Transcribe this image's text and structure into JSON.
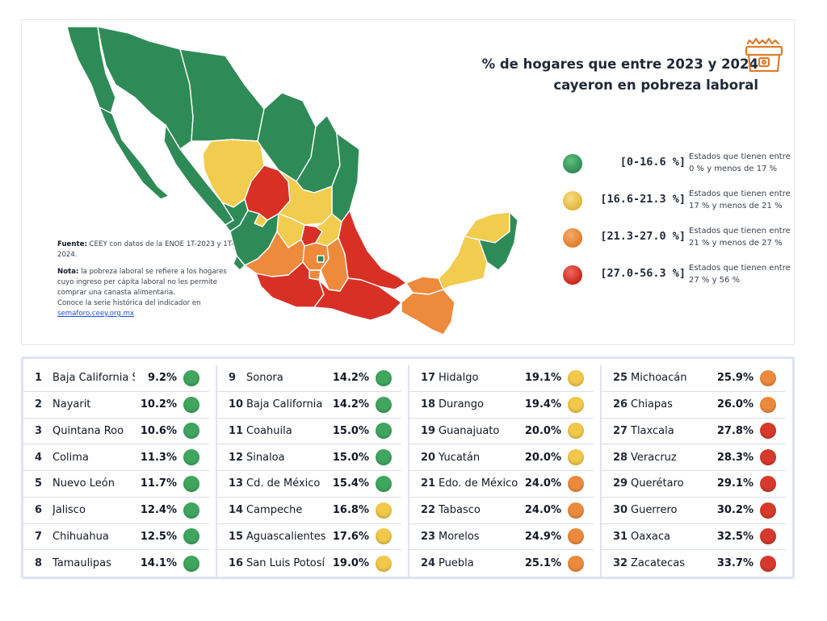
{
  "colors": {
    "green": "#2e8b57",
    "yellow": "#f2cc4e",
    "orange": "#ee8a3c",
    "red": "#d93025",
    "panel_border": "#dde3f6",
    "accent_orange": "#e07b2c"
  },
  "header": {
    "title_line1": "% de hogares que entre 2023 y 2024",
    "title_line2": "cayeron en pobreza laboral",
    "icon": "shopping-basket-icon"
  },
  "legend": [
    {
      "range": "[0-16.6 %]",
      "desc_line1": "Estados que tienen entre",
      "desc_line2": "0 % y menos de 17 %",
      "color": "green"
    },
    {
      "range": "[16.6-21.3 %]",
      "desc_line1": "Estados que tienen entre",
      "desc_line2": "17 % y menos de 21 %",
      "color": "yellow"
    },
    {
      "range": "[21.3-27.0 %]",
      "desc_line1": "Estados que tienen entre",
      "desc_line2": "21 % y menos de 27 %",
      "color": "orange"
    },
    {
      "range": "[27.0-56.3 %]",
      "desc_line1": "Estados que tienen entre",
      "desc_line2": "27 % y 56 %",
      "color": "red"
    }
  ],
  "notes": {
    "fuente_label": "Fuente:",
    "fuente_text": "CEEY con datos de la ENOE 1T-2023 y 1T-2024.",
    "nota_label": "Nota:",
    "nota_text": "la pobreza laboral se refiere a los hogares cuyo ingreso per cápita laboral no les permite comprar una canasta alimentaria.",
    "serie_text": "Conoce la serie histórica del indicador en",
    "link": "semaforo.ceey.org.mx"
  },
  "table": [
    {
      "rank": "1",
      "state": "Baja California Sur",
      "pct": "9.2%",
      "color": "green"
    },
    {
      "rank": "2",
      "state": "Nayarit",
      "pct": "10.2%",
      "color": "green"
    },
    {
      "rank": "3",
      "state": "Quintana Roo",
      "pct": "10.6%",
      "color": "green"
    },
    {
      "rank": "4",
      "state": "Colima",
      "pct": "11.3%",
      "color": "green"
    },
    {
      "rank": "5",
      "state": "Nuevo León",
      "pct": "11.7%",
      "color": "green"
    },
    {
      "rank": "6",
      "state": "Jalisco",
      "pct": "12.4%",
      "color": "green"
    },
    {
      "rank": "7",
      "state": "Chihuahua",
      "pct": "12.5%",
      "color": "green"
    },
    {
      "rank": "8",
      "state": "Tamaulipas",
      "pct": "14.1%",
      "color": "green"
    },
    {
      "rank": "9",
      "state": "Sonora",
      "pct": "14.2%",
      "color": "green"
    },
    {
      "rank": "10",
      "state": "Baja California",
      "pct": "14.2%",
      "color": "green"
    },
    {
      "rank": "11",
      "state": "Coahuila",
      "pct": "15.0%",
      "color": "green"
    },
    {
      "rank": "12",
      "state": "Sinaloa",
      "pct": "15.0%",
      "color": "green"
    },
    {
      "rank": "13",
      "state": "Cd. de México",
      "pct": "15.4%",
      "color": "green"
    },
    {
      "rank": "14",
      "state": "Campeche",
      "pct": "16.8%",
      "color": "yellow"
    },
    {
      "rank": "15",
      "state": "Aguascalientes",
      "pct": "17.6%",
      "color": "yellow"
    },
    {
      "rank": "16",
      "state": "San Luis Potosí",
      "pct": "19.0%",
      "color": "yellow"
    },
    {
      "rank": "17",
      "state": "Hidalgo",
      "pct": "19.1%",
      "color": "yellow"
    },
    {
      "rank": "18",
      "state": "Durango",
      "pct": "19.4%",
      "color": "yellow"
    },
    {
      "rank": "19",
      "state": "Guanajuato",
      "pct": "20.0%",
      "color": "yellow"
    },
    {
      "rank": "20",
      "state": "Yucatán",
      "pct": "20.0%",
      "color": "yellow"
    },
    {
      "rank": "21",
      "state": "Edo. de México",
      "pct": "24.0%",
      "color": "orange"
    },
    {
      "rank": "22",
      "state": "Tabasco",
      "pct": "24.0%",
      "color": "orange"
    },
    {
      "rank": "23",
      "state": "Morelos",
      "pct": "24.9%",
      "color": "orange"
    },
    {
      "rank": "24",
      "state": "Puebla",
      "pct": "25.1%",
      "color": "orange"
    },
    {
      "rank": "25",
      "state": "Michoacán",
      "pct": "25.9%",
      "color": "orange"
    },
    {
      "rank": "26",
      "state": "Chiapas",
      "pct": "26.0%",
      "color": "orange"
    },
    {
      "rank": "27",
      "state": "Tlaxcala",
      "pct": "27.8%",
      "color": "red"
    },
    {
      "rank": "28",
      "state": "Veracruz",
      "pct": "28.3%",
      "color": "red"
    },
    {
      "rank": "29",
      "state": "Querétaro",
      "pct": "29.1%",
      "color": "red"
    },
    {
      "rank": "30",
      "state": "Guerrero",
      "pct": "30.2%",
      "color": "red"
    },
    {
      "rank": "31",
      "state": "Oaxaca",
      "pct": "32.5%",
      "color": "red"
    },
    {
      "rank": "32",
      "state": "Zacatecas",
      "pct": "33.7%",
      "color": "red"
    }
  ]
}
